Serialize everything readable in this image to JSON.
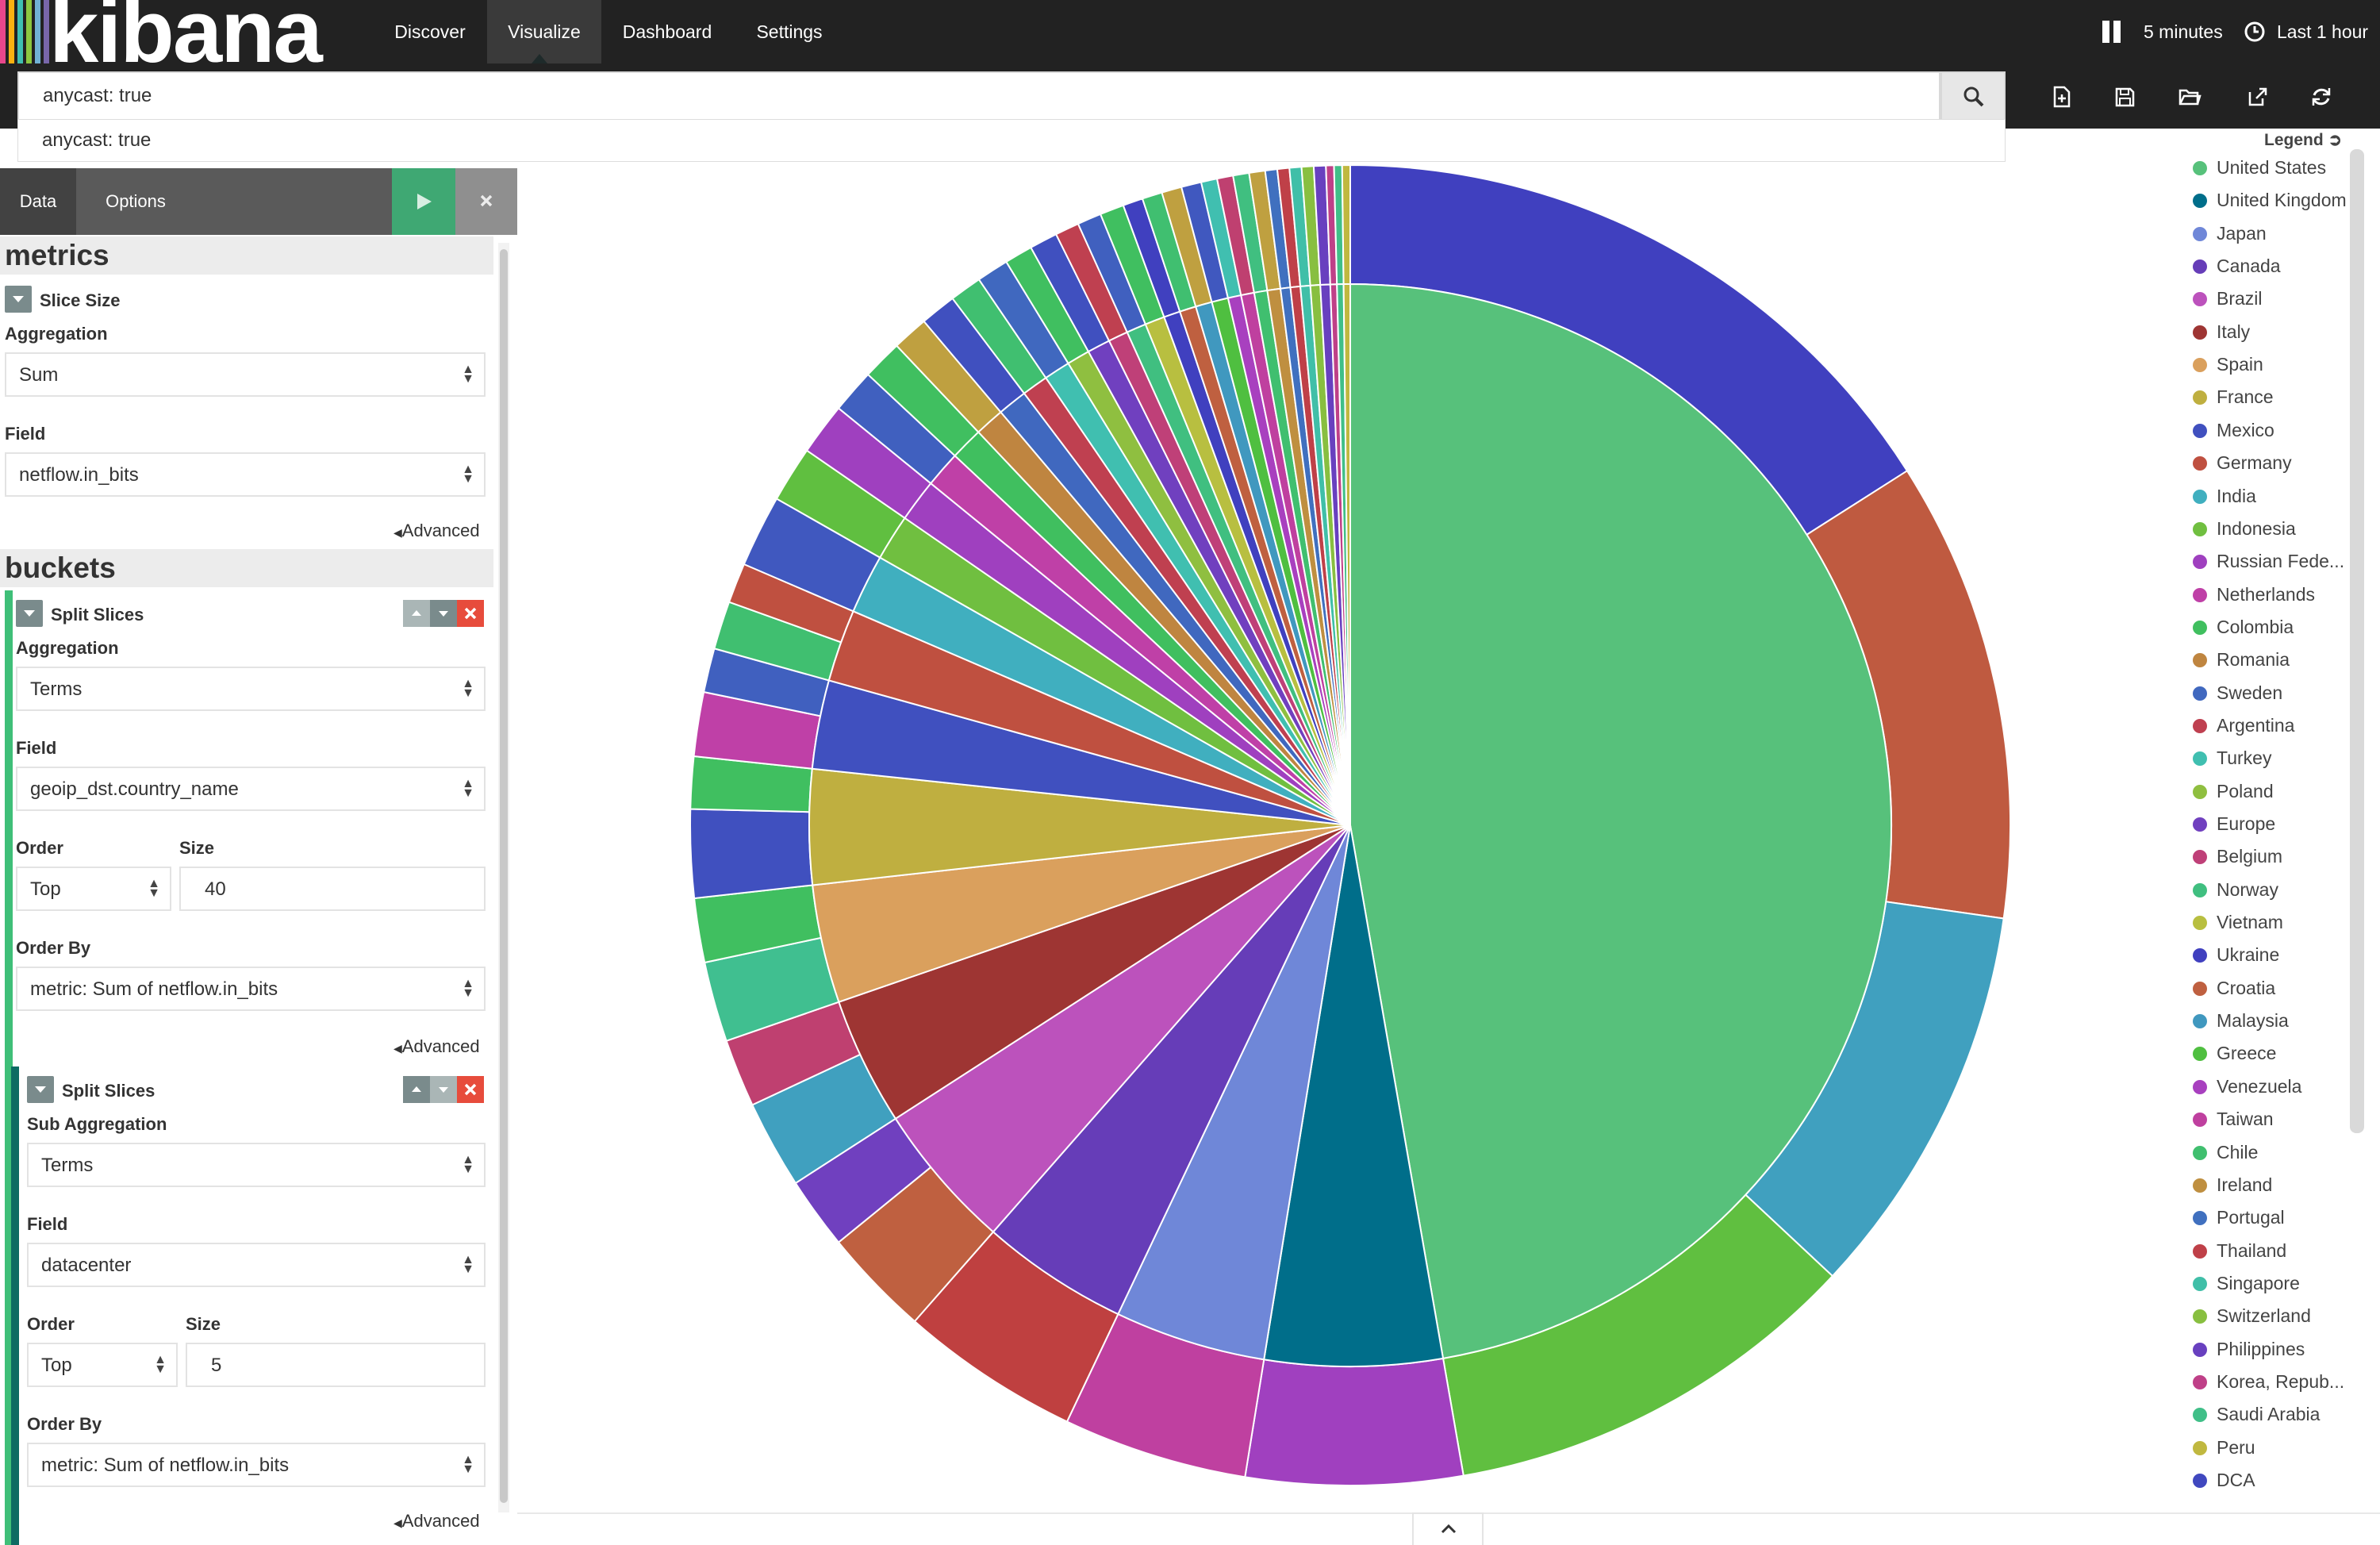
{
  "app": {
    "logo_text": "kibana",
    "logo_colors": [
      "#e8478b",
      "#f9b110",
      "#3ebeb0",
      "#8cc63f",
      "#71b2d6",
      "#7866aa"
    ]
  },
  "nav": {
    "items": [
      "Discover",
      "Visualize",
      "Dashboard",
      "Settings"
    ],
    "active": "Visualize",
    "interval_label": "5 minutes",
    "time_label": "Last 1 hour"
  },
  "search": {
    "value": "anycast: true",
    "suggestion": "anycast: true"
  },
  "toolbar_icons": [
    "new-visualization-icon",
    "save-icon",
    "open-icon",
    "share-icon",
    "refresh-icon"
  ],
  "editor": {
    "tabs": [
      "Data",
      "Options"
    ],
    "metrics_title": "metrics",
    "slice_size_label": "Slice Size",
    "aggregation_label": "Aggregation",
    "metric_aggregation": "Sum",
    "field_label": "Field",
    "metric_field": "netflow.in_bits",
    "advanced_label": "Advanced",
    "buckets_title": "buckets",
    "bucket1": {
      "title": "Split Slices",
      "aggregation_label": "Aggregation",
      "aggregation": "Terms",
      "field_label": "Field",
      "field": "geoip_dst.country_name",
      "order_label": "Order",
      "order": "Top",
      "size_label": "Size",
      "size": "40",
      "order_by_label": "Order By",
      "order_by": "metric: Sum of netflow.in_bits",
      "advanced_label": "Advanced"
    },
    "bucket2": {
      "title": "Split Slices",
      "aggregation_label": "Sub Aggregation",
      "aggregation": "Terms",
      "field_label": "Field",
      "field": "datacenter",
      "order_label": "Order",
      "order": "Top",
      "size_label": "Size",
      "size": "5",
      "order_by_label": "Order By",
      "order_by": "metric: Sum of netflow.in_bits",
      "advanced_label": "Advanced"
    }
  },
  "legend": {
    "title": "Legend",
    "items": [
      {
        "label": "United States",
        "color": "#57c17b"
      },
      {
        "label": "United Kingdom",
        "color": "#006e8a"
      },
      {
        "label": "Japan",
        "color": "#6f87d8"
      },
      {
        "label": "Canada",
        "color": "#663db8"
      },
      {
        "label": "Brazil",
        "color": "#bc52bc"
      },
      {
        "label": "Italy",
        "color": "#9e3533"
      },
      {
        "label": "Spain",
        "color": "#daa05d"
      },
      {
        "label": "France",
        "color": "#bfaf40"
      },
      {
        "label": "Mexico",
        "color": "#4050bf"
      },
      {
        "label": "Germany",
        "color": "#bf5040"
      },
      {
        "label": "India",
        "color": "#40afbf"
      },
      {
        "label": "Indonesia",
        "color": "#70bf40"
      },
      {
        "label": "Russian Fede...",
        "color": "#9f40bf"
      },
      {
        "label": "Netherlands",
        "color": "#bf40a7"
      },
      {
        "label": "Colombia",
        "color": "#40bf5f"
      },
      {
        "label": "Romania",
        "color": "#bf8540"
      },
      {
        "label": "Sweden",
        "color": "#4068bf"
      },
      {
        "label": "Argentina",
        "color": "#bf4050"
      },
      {
        "label": "Turkey",
        "color": "#40bfb0"
      },
      {
        "label": "Poland",
        "color": "#8fbf40"
      },
      {
        "label": "Europe",
        "color": "#7040bf"
      },
      {
        "label": "Belgium",
        "color": "#bf4078"
      },
      {
        "label": "Norway",
        "color": "#40bf80"
      },
      {
        "label": "Vietnam",
        "color": "#b8bf40"
      },
      {
        "label": "Ukraine",
        "color": "#4040bf"
      },
      {
        "label": "Croatia",
        "color": "#bf6040"
      },
      {
        "label": "Malaysia",
        "color": "#4098bf"
      },
      {
        "label": "Greece",
        "color": "#4fbf40"
      },
      {
        "label": "Venezuela",
        "color": "#a840bf"
      },
      {
        "label": "Taiwan",
        "color": "#bf409f"
      },
      {
        "label": "Chile",
        "color": "#40bf6f"
      },
      {
        "label": "Ireland",
        "color": "#bf8f40"
      },
      {
        "label": "Portugal",
        "color": "#4070bf"
      },
      {
        "label": "Thailand",
        "color": "#bf4048"
      },
      {
        "label": "Singapore",
        "color": "#40bfa8"
      },
      {
        "label": "Switzerland",
        "color": "#88bf40"
      },
      {
        "label": "Philippines",
        "color": "#6840bf"
      },
      {
        "label": "Korea, Repub...",
        "color": "#bf4088"
      },
      {
        "label": "Saudi Arabia",
        "color": "#40bf88"
      },
      {
        "label": "Peru",
        "color": "#c0b840"
      },
      {
        "label": "DCA",
        "color": "#4048bf"
      }
    ]
  },
  "chart_data": {
    "type": "pie",
    "donut_levels": 2,
    "inner": [
      {
        "label": "United States",
        "value": 48.2,
        "color": "#57c17b"
      },
      {
        "label": "United Kingdom",
        "value": 5.4,
        "color": "#006e8a"
      },
      {
        "label": "Japan",
        "value": 4.6,
        "color": "#6f87d8"
      },
      {
        "label": "Canada",
        "value": 4.5,
        "color": "#663db8"
      },
      {
        "label": "Brazil",
        "value": 4.5,
        "color": "#bc52bc"
      },
      {
        "label": "Italy",
        "value": 3.9,
        "color": "#9e3533"
      },
      {
        "label": "Spain",
        "value": 3.6,
        "color": "#daa05d"
      },
      {
        "label": "France",
        "value": 3.5,
        "color": "#bfaf40"
      },
      {
        "label": "Mexico",
        "value": 2.7,
        "color": "#4050bf"
      },
      {
        "label": "Germany",
        "value": 2.2,
        "color": "#bf5040"
      },
      {
        "label": "India",
        "value": 1.8,
        "color": "#40afbf"
      },
      {
        "label": "Indonesia",
        "value": 1.4,
        "color": "#70bf40"
      },
      {
        "label": "Russian Fede...",
        "value": 1.3,
        "color": "#9f40bf"
      },
      {
        "label": "Netherlands",
        "value": 1.1,
        "color": "#bf40a7"
      },
      {
        "label": "Colombia",
        "value": 1.0,
        "color": "#40bf5f"
      },
      {
        "label": "Romania",
        "value": 0.9,
        "color": "#bf8540"
      },
      {
        "label": "Sweden",
        "value": 0.9,
        "color": "#4068bf"
      },
      {
        "label": "Argentina",
        "value": 0.8,
        "color": "#bf4050"
      },
      {
        "label": "Turkey",
        "value": 0.8,
        "color": "#40bfb0"
      },
      {
        "label": "Poland",
        "value": 0.7,
        "color": "#8fbf40"
      },
      {
        "label": "Europe",
        "value": 0.7,
        "color": "#7040bf"
      },
      {
        "label": "Belgium",
        "value": 0.6,
        "color": "#bf4078"
      },
      {
        "label": "Norway",
        "value": 0.6,
        "color": "#40bf80"
      },
      {
        "label": "Vietnam",
        "value": 0.6,
        "color": "#b8bf40"
      },
      {
        "label": "Ukraine",
        "value": 0.5,
        "color": "#4040bf"
      },
      {
        "label": "Croatia",
        "value": 0.5,
        "color": "#bf6040"
      },
      {
        "label": "Malaysia",
        "value": 0.5,
        "color": "#4098bf"
      },
      {
        "label": "Greece",
        "value": 0.5,
        "color": "#4fbf40"
      },
      {
        "label": "Venezuela",
        "value": 0.4,
        "color": "#a840bf"
      },
      {
        "label": "Taiwan",
        "value": 0.4,
        "color": "#bf409f"
      },
      {
        "label": "Chile",
        "value": 0.4,
        "color": "#40bf6f"
      },
      {
        "label": "Ireland",
        "value": 0.4,
        "color": "#bf8f40"
      },
      {
        "label": "Portugal",
        "value": 0.3,
        "color": "#4070bf"
      },
      {
        "label": "Thailand",
        "value": 0.3,
        "color": "#bf4048"
      },
      {
        "label": "Singapore",
        "value": 0.3,
        "color": "#40bfa8"
      },
      {
        "label": "Switzerland",
        "value": 0.3,
        "color": "#88bf40"
      },
      {
        "label": "Philippines",
        "value": 0.3,
        "color": "#6840bf"
      },
      {
        "label": "Korea, Repub...",
        "value": 0.2,
        "color": "#bf4088"
      },
      {
        "label": "Saudi Arabia",
        "value": 0.2,
        "color": "#40bf88"
      },
      {
        "label": "Peru",
        "value": 0.2,
        "color": "#c0b840"
      }
    ],
    "outer": [
      {
        "parent": "United States",
        "value": 16.3,
        "color": "#4040bf"
      },
      {
        "parent": "United States",
        "value": 11.5,
        "color": "#bf5a40"
      },
      {
        "parent": "United States",
        "value": 9.9,
        "color": "#40a0bf"
      },
      {
        "parent": "United States",
        "value": 10.5,
        "color": "#60bf40"
      },
      {
        "parent": "United Kingdom",
        "value": 5.4,
        "color": "#a040bf"
      },
      {
        "parent": "Japan",
        "value": 4.6,
        "color": "#bf40a0"
      },
      {
        "parent": "Canada",
        "value": 4.5,
        "color": "#bf4040"
      },
      {
        "parent": "Brazil",
        "value": 2.7,
        "color": "#bf6040"
      },
      {
        "parent": "Brazil",
        "value": 1.8,
        "color": "#7040bf"
      },
      {
        "parent": "Italy",
        "value": 2.2,
        "color": "#40a0bf"
      },
      {
        "parent": "Italy",
        "value": 1.7,
        "color": "#bf4070"
      },
      {
        "parent": "Spain",
        "value": 2.0,
        "color": "#40bf90"
      },
      {
        "parent": "Spain",
        "value": 1.6,
        "color": "#40bf60"
      },
      {
        "parent": "France",
        "value": 2.2,
        "color": "#4050bf"
      },
      {
        "parent": "France",
        "value": 1.3,
        "color": "#40bf60"
      },
      {
        "parent": "Mexico",
        "value": 1.6,
        "color": "#bf40a7"
      },
      {
        "parent": "Mexico",
        "value": 1.1,
        "color": "#4060bf"
      },
      {
        "parent": "Germany",
        "value": 1.2,
        "color": "#40bf70"
      },
      {
        "parent": "Germany",
        "value": 1.0,
        "color": "#bf5040"
      },
      {
        "parent": "India",
        "value": 1.8,
        "color": "#4058bf"
      },
      {
        "parent": "Indonesia",
        "value": 1.4,
        "color": "#60bf40"
      },
      {
        "parent": "Russian Fede...",
        "value": 1.3,
        "color": "#9f40bf"
      },
      {
        "parent": "Netherlands",
        "value": 1.1,
        "color": "#4060bf"
      },
      {
        "parent": "Colombia",
        "value": 1.0,
        "color": "#40bf60"
      },
      {
        "parent": "Romania",
        "value": 0.9,
        "color": "#bfa040"
      },
      {
        "parent": "Sweden",
        "value": 0.9,
        "color": "#4050bf"
      },
      {
        "parent": "Argentina",
        "value": 0.8,
        "color": "#40bf70"
      },
      {
        "parent": "Turkey",
        "value": 0.8,
        "color": "#4068bf"
      },
      {
        "parent": "Poland",
        "value": 0.7,
        "color": "#40bf60"
      },
      {
        "parent": "Europe",
        "value": 0.7,
        "color": "#4050bf"
      },
      {
        "parent": "Belgium",
        "value": 0.6,
        "color": "#bf4050"
      },
      {
        "parent": "Norway",
        "value": 0.6,
        "color": "#4060bf"
      },
      {
        "parent": "Vietnam",
        "value": 0.6,
        "color": "#40bf60"
      },
      {
        "parent": "Ukraine",
        "value": 0.5,
        "color": "#4040bf"
      },
      {
        "parent": "Croatia",
        "value": 0.5,
        "color": "#40bf70"
      },
      {
        "parent": "Malaysia",
        "value": 0.5,
        "color": "#bfa040"
      },
      {
        "parent": "Greece",
        "value": 0.5,
        "color": "#4058bf"
      },
      {
        "parent": "Venezuela",
        "value": 0.4,
        "color": "#40bfb0"
      },
      {
        "parent": "Taiwan",
        "value": 0.4,
        "color": "#bf4070"
      },
      {
        "parent": "Chile",
        "value": 0.4,
        "color": "#40bf80"
      },
      {
        "parent": "Ireland",
        "value": 0.4,
        "color": "#bfa040"
      },
      {
        "parent": "Portugal",
        "value": 0.3,
        "color": "#4070bf"
      },
      {
        "parent": "Thailand",
        "value": 0.3,
        "color": "#bf4048"
      },
      {
        "parent": "Singapore",
        "value": 0.3,
        "color": "#40bfa8"
      },
      {
        "parent": "Switzerland",
        "value": 0.3,
        "color": "#88bf40"
      },
      {
        "parent": "Philippines",
        "value": 0.3,
        "color": "#6840bf"
      },
      {
        "parent": "Korea, Repub...",
        "value": 0.2,
        "color": "#bf4088"
      },
      {
        "parent": "Saudi Arabia",
        "value": 0.2,
        "color": "#40bf88"
      },
      {
        "parent": "Peru",
        "value": 0.2,
        "color": "#c0b840"
      }
    ]
  }
}
